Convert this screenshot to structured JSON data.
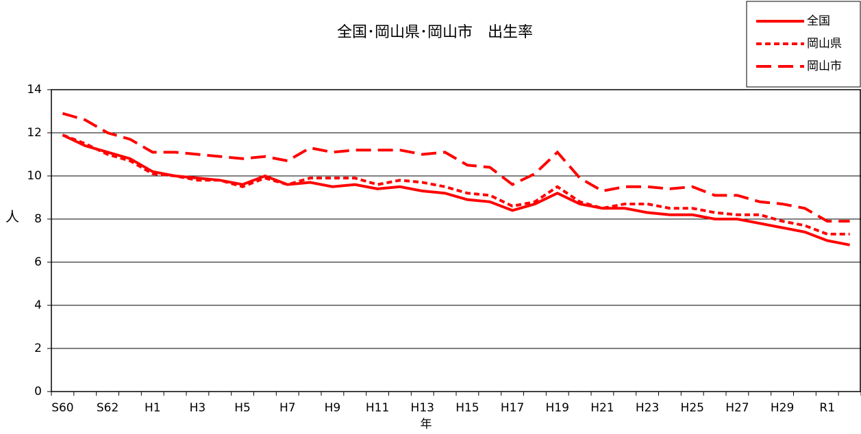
{
  "chart_data": {
    "type": "line",
    "title": "全国･岡山県･岡山市　出生率",
    "y_label": "人",
    "x_label": "年",
    "categories": [
      "S60",
      null,
      "S62",
      null,
      "H1",
      null,
      "H3",
      null,
      "H5",
      null,
      "H7",
      null,
      "H9",
      null,
      "H11",
      null,
      "H13",
      null,
      "H15",
      null,
      "H17",
      null,
      "H19",
      null,
      "H21",
      null,
      "H23",
      null,
      "H25",
      null,
      "H27",
      null,
      "H29",
      null,
      "R1",
      null
    ],
    "series": [
      {
        "name": "全国",
        "color": "#ff0000",
        "style": "solid",
        "values": [
          11.9,
          11.4,
          11.1,
          10.8,
          10.2,
          10.0,
          9.9,
          9.8,
          9.6,
          10.0,
          9.6,
          9.7,
          9.5,
          9.6,
          9.4,
          9.5,
          9.3,
          9.2,
          8.9,
          8.8,
          8.4,
          8.7,
          9.2,
          8.7,
          8.5,
          8.5,
          8.3,
          8.2,
          8.2,
          8.0,
          8.0,
          7.8,
          7.6,
          7.4,
          7.0,
          6.8
        ]
      },
      {
        "name": "岡山県",
        "color": "#ff0000",
        "style": "dotted",
        "values": [
          11.9,
          11.5,
          11.0,
          10.7,
          10.1,
          10.0,
          9.8,
          9.8,
          9.5,
          9.9,
          9.6,
          9.9,
          9.9,
          9.9,
          9.6,
          9.8,
          9.7,
          9.5,
          9.2,
          9.1,
          8.6,
          8.8,
          9.5,
          8.8,
          8.5,
          8.7,
          8.7,
          8.5,
          8.5,
          8.3,
          8.2,
          8.2,
          7.9,
          7.7,
          7.3,
          7.3
        ]
      },
      {
        "name": "岡山市",
        "color": "#ff0000",
        "style": "dashed",
        "values": [
          12.9,
          12.6,
          12.0,
          11.7,
          11.1,
          11.1,
          11.0,
          10.9,
          10.8,
          10.9,
          10.7,
          11.3,
          11.1,
          11.2,
          11.2,
          11.2,
          11.0,
          11.1,
          10.5,
          10.4,
          9.6,
          10.1,
          11.1,
          9.9,
          9.3,
          9.5,
          9.5,
          9.4,
          9.5,
          9.1,
          9.1,
          8.8,
          8.7,
          8.5,
          7.9,
          7.9
        ]
      }
    ],
    "ylim": [
      0,
      14
    ],
    "yticks": [
      0,
      2,
      4,
      6,
      8,
      10,
      12,
      14
    ],
    "grid": true,
    "legend": "upper right"
  }
}
